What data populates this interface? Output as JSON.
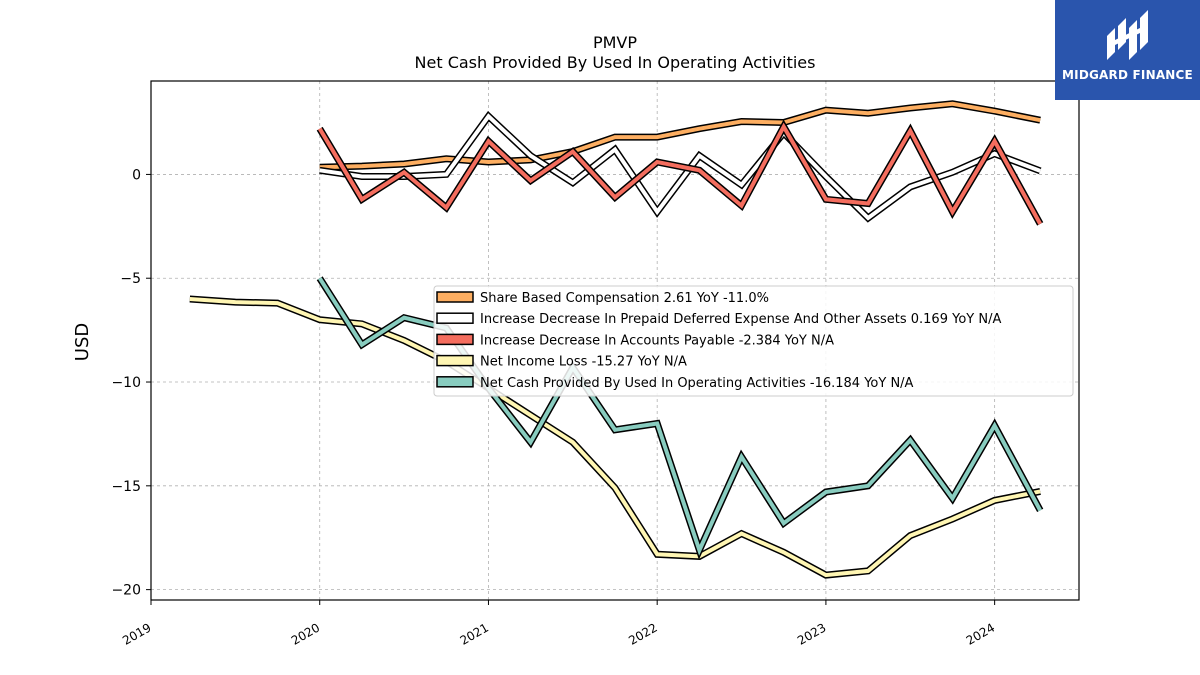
{
  "chart_data": {
    "type": "line",
    "title": "PMVP",
    "subtitle": "Net Cash Provided By Used In Operating Activities",
    "ylabel": "USD",
    "xlabel": "",
    "xlim": [
      2019.0,
      2024.5
    ],
    "ylim": [
      -20.5,
      4.5
    ],
    "xticks": [
      2019,
      2020,
      2021,
      2022,
      2023,
      2024
    ],
    "yticks": [
      0,
      -5,
      -10,
      -15,
      -20
    ],
    "ytick_labels": [
      "0",
      "−5",
      "−10",
      "−15",
      "−20"
    ],
    "grid": true,
    "legend_position": "center-right",
    "series": [
      {
        "name": "Share Based Compensation",
        "legend_label": "Share Based Compensation  2.61 YoY -11.0%",
        "color": "#fdae61",
        "x": [
          2020.0,
          2020.25,
          2020.5,
          2020.75,
          2021.0,
          2021.25,
          2021.5,
          2021.75,
          2022.0,
          2022.25,
          2022.5,
          2022.75,
          2023.0,
          2023.25,
          2023.5,
          2023.75,
          2024.0,
          2024.27
        ],
        "y": [
          0.35,
          0.4,
          0.5,
          0.75,
          0.6,
          0.7,
          1.1,
          1.8,
          1.8,
          2.2,
          2.55,
          2.5,
          3.1,
          2.95,
          3.2,
          3.4,
          3.05,
          2.61
        ]
      },
      {
        "name": "Increase Decrease In Prepaid Deferred Expense And Other Assets",
        "legend_label": "Increase Decrease In Prepaid Deferred Expense And Other Assets  0.169 YoY N/A",
        "color": "#ffffff",
        "x": [
          2020.0,
          2020.25,
          2020.5,
          2020.75,
          2021.0,
          2021.25,
          2021.5,
          2021.75,
          2022.0,
          2022.25,
          2022.5,
          2022.75,
          2023.0,
          2023.25,
          2023.5,
          2023.75,
          2024.0,
          2024.27
        ],
        "y": [
          0.2,
          -0.1,
          -0.1,
          0.0,
          2.8,
          0.9,
          -0.4,
          1.2,
          -1.8,
          0.9,
          -0.5,
          2.0,
          -0.1,
          -2.1,
          -0.6,
          0.1,
          1.0,
          0.169
        ]
      },
      {
        "name": "Increase Decrease In Accounts Payable",
        "legend_label": "Increase Decrease In Accounts Payable  -2.384 YoY N/A",
        "color": "#f46d5e",
        "x": [
          2020.0,
          2020.25,
          2020.5,
          2020.75,
          2021.0,
          2021.25,
          2021.5,
          2021.75,
          2022.0,
          2022.25,
          2022.5,
          2022.75,
          2023.0,
          2023.25,
          2023.5,
          2023.75,
          2024.0,
          2024.27
        ],
        "y": [
          2.2,
          -1.2,
          0.1,
          -1.6,
          1.6,
          -0.3,
          1.1,
          -1.1,
          0.6,
          0.2,
          -1.5,
          2.3,
          -1.2,
          -1.4,
          2.1,
          -1.8,
          1.6,
          -2.384
        ]
      },
      {
        "name": "Net Income Loss",
        "legend_label": "Net Income Loss  -15.27 YoY N/A",
        "color": "#fff6b3",
        "x": [
          2019.23,
          2019.5,
          2019.75,
          2020.0,
          2020.25,
          2020.5,
          2020.75,
          2021.0,
          2021.25,
          2021.5,
          2021.75,
          2022.0,
          2022.25,
          2022.5,
          2022.75,
          2023.0,
          2023.25,
          2023.5,
          2023.75,
          2024.0,
          2024.27
        ],
        "y": [
          -6.0,
          -6.15,
          -6.2,
          -7.0,
          -7.2,
          -8.0,
          -9.0,
          -10.3,
          -11.6,
          -12.9,
          -15.1,
          -18.3,
          -18.4,
          -17.3,
          -18.2,
          -19.3,
          -19.1,
          -17.4,
          -16.6,
          -15.7,
          -15.27
        ]
      },
      {
        "name": "Net Cash Provided By Used In Operating Activities",
        "legend_label": "Net Cash Provided By Used In Operating Activities  -16.184 YoY N/A",
        "color": "#88ccbf",
        "x": [
          2020.0,
          2020.25,
          2020.5,
          2020.75,
          2021.0,
          2021.25,
          2021.5,
          2021.75,
          2022.0,
          2022.25,
          2022.5,
          2022.75,
          2023.0,
          2023.25,
          2023.5,
          2023.75,
          2024.0,
          2024.27
        ],
        "y": [
          -5.0,
          -8.2,
          -6.9,
          -7.4,
          -10.3,
          -12.9,
          -9.3,
          -12.3,
          -12.0,
          -18.1,
          -13.6,
          -16.8,
          -15.3,
          -15.0,
          -12.8,
          -15.6,
          -12.1,
          -16.184
        ]
      }
    ]
  },
  "logo": {
    "text": "MIDGARD FINANCE",
    "icon": "midgard-finance-logo-icon",
    "background": "#2a55ad"
  }
}
